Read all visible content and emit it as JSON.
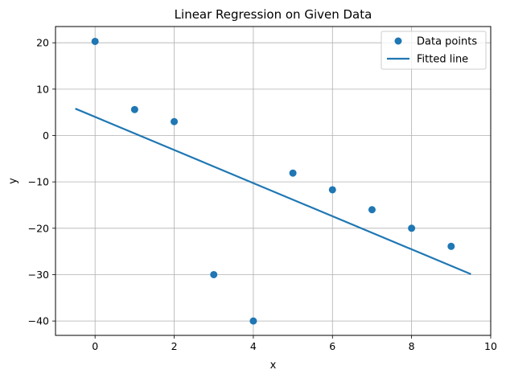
{
  "chart_data": {
    "type": "scatter",
    "title": "Linear Regression on Given Data",
    "xlabel": "x",
    "ylabel": "y",
    "xlim": [
      -1,
      10
    ],
    "ylim": [
      -43.1,
      23.5
    ],
    "xticks": [
      0,
      2,
      4,
      6,
      8,
      10
    ],
    "yticks": [
      20,
      10,
      0,
      -10,
      -20,
      -30,
      -40
    ],
    "xtick_labels": [
      "0",
      "2",
      "4",
      "6",
      "8",
      "10"
    ],
    "ytick_labels": [
      "20",
      "10",
      "0",
      "−10",
      "−20",
      "−30",
      "−40"
    ],
    "grid": true,
    "legend_position": "top-right",
    "series": [
      {
        "name": "Data points",
        "kind": "scatter",
        "color": "#1f77b4",
        "x": [
          0,
          1,
          2,
          3,
          4,
          5,
          6,
          7,
          8,
          9
        ],
        "y": [
          20.3,
          5.6,
          3.0,
          -30.0,
          -40.0,
          -8.1,
          -11.7,
          -16.0,
          -20.0,
          -23.9
        ]
      },
      {
        "name": "Fitted line",
        "kind": "line",
        "color": "#1f77b4",
        "x": [
          -0.5,
          9.5
        ],
        "y": [
          5.8,
          -29.9
        ]
      }
    ]
  }
}
